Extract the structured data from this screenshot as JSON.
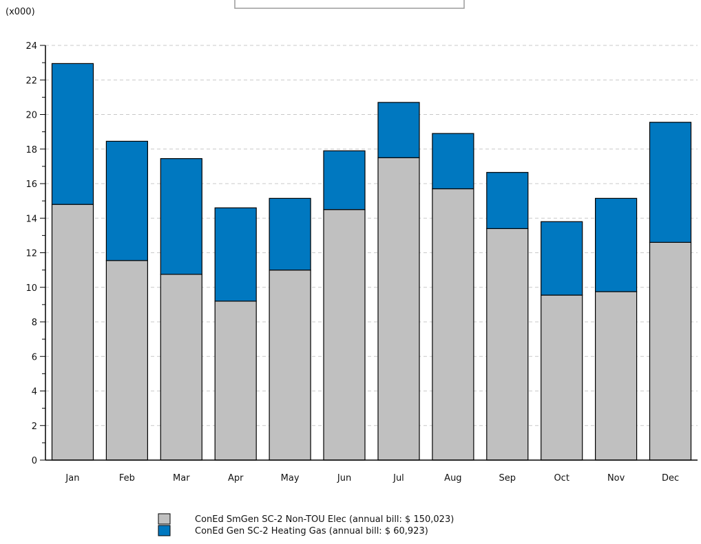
{
  "chart_data": {
    "type": "bar",
    "stacked": true,
    "unit_label": "(x000)",
    "categories": [
      "Jan",
      "Feb",
      "Mar",
      "Apr",
      "May",
      "Jun",
      "Jul",
      "Aug",
      "Sep",
      "Oct",
      "Nov",
      "Dec"
    ],
    "series": [
      {
        "name": "ConEd SmGen SC-2 Non-TOU Elec (annual bill: $ 150,023)",
        "color": "#c0c0c0",
        "values": [
          14.8,
          11.55,
          10.75,
          9.2,
          11.0,
          14.5,
          17.5,
          15.7,
          13.4,
          9.55,
          9.75,
          12.6
        ]
      },
      {
        "name": "ConEd Gen SC-2 Heating Gas (annual bill: $ 60,923)",
        "color": "#0078c0",
        "values": [
          8.15,
          6.9,
          6.7,
          5.4,
          4.15,
          3.4,
          3.2,
          3.2,
          3.25,
          4.25,
          5.4,
          6.95
        ]
      }
    ],
    "ylim": [
      0,
      24
    ],
    "yticks": [
      0,
      2,
      4,
      6,
      8,
      10,
      12,
      14,
      16,
      18,
      20,
      22,
      24
    ],
    "grid": "horizontal-dashed",
    "legend_position": "bottom-center"
  }
}
